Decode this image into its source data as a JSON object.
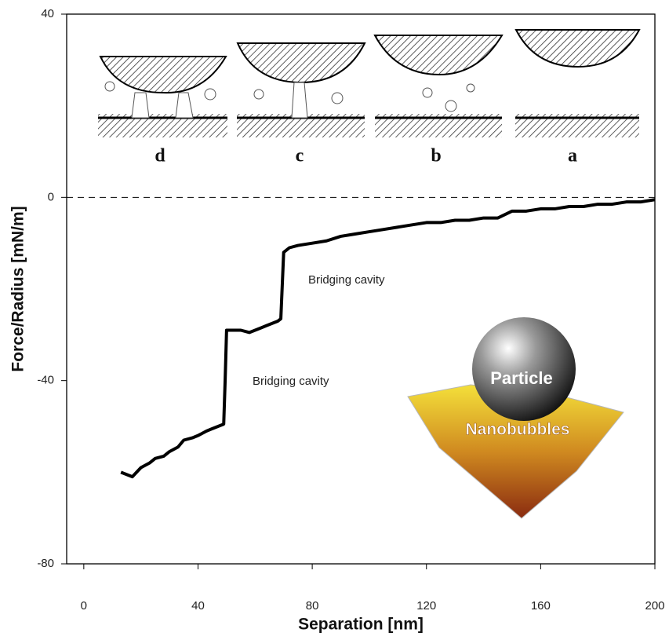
{
  "chart_data": {
    "type": "line",
    "x_label": "Separation [nm]",
    "y_label": "Force/Radius [mN/m]",
    "xlim": [
      -6,
      200
    ],
    "ylim": [
      -80,
      40
    ],
    "xticks": [
      0,
      40,
      80,
      120,
      160,
      200
    ],
    "yticks": [
      -80,
      -40,
      0,
      40
    ],
    "zero_line": true,
    "color": "#000000",
    "series": [
      {
        "x": [
          13,
          15,
          17,
          20,
          23,
          25,
          28,
          30,
          33,
          35,
          38,
          40,
          43,
          45,
          47,
          49,
          49.5,
          50,
          52,
          55,
          58,
          60,
          62,
          64,
          66,
          68,
          69,
          70,
          72,
          75,
          80,
          85,
          90,
          95,
          100,
          105,
          110,
          115,
          120,
          125,
          130,
          135,
          140,
          145,
          150,
          155,
          160,
          165,
          170,
          175,
          180,
          185,
          190,
          195,
          200
        ],
        "values": [
          -60,
          -60.5,
          -61,
          -59,
          -58,
          -57,
          -56.5,
          -55.5,
          -54.5,
          -53,
          -52.5,
          -52,
          -51,
          -50.5,
          -50,
          -49.5,
          -40,
          -29,
          -29,
          -29,
          -29.5,
          -29,
          -28.5,
          -28,
          -27.5,
          -27,
          -26.5,
          -12,
          -11,
          -10.5,
          -10,
          -9.5,
          -8.5,
          -8,
          -7.5,
          -7,
          -6.5,
          -6,
          -5.5,
          -5.5,
          -5,
          -5,
          -4.5,
          -4.5,
          -3,
          -3,
          -2.5,
          -2.5,
          -2,
          -2,
          -1.5,
          -1.5,
          -1,
          -1,
          -0.5
        ]
      }
    ],
    "annotations": [
      "Bridging cavity",
      "Bridging cavity"
    ],
    "inset_labels": [
      "d",
      "c",
      "b",
      "a"
    ],
    "particle_label": "Particle",
    "surface_label": "Nanobubbles"
  }
}
